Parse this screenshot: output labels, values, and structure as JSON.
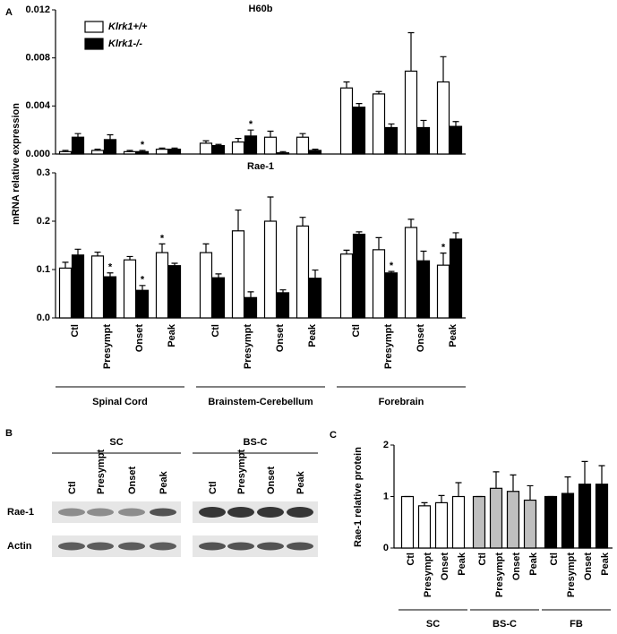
{
  "chart_data": [
    {
      "type": "bar",
      "panel_label": "A",
      "title": "H60b",
      "ylabel": "mRNA relative expression",
      "ylim": [
        0,
        0.012
      ],
      "yticks": [
        {
          "value": 0,
          "label": "0.000"
        },
        0.004,
        0.008,
        0.012
      ],
      "series": [
        {
          "name": "Klrk1+/+",
          "color": "#ffffff",
          "values": [
            0.0002,
            0.0003,
            0.0002,
            0.0004,
            0.0009,
            0.001,
            0.0014,
            0.0014,
            0.0055,
            0.005,
            0.0069,
            0.006
          ],
          "errors": [
            0.0001,
            0.0001,
            0.0001,
            0.0001,
            0.0002,
            0.0003,
            0.0005,
            0.0003,
            0.0005,
            0.0002,
            0.0032,
            0.0021
          ]
        },
        {
          "name": "Klrk1-/-",
          "color": "#000000",
          "values": [
            0.0014,
            0.0012,
            0.0002,
            0.0004,
            0.0007,
            0.0015,
            0.0001,
            0.0003,
            0.0039,
            0.0022,
            0.0022,
            0.0023
          ],
          "errors": [
            0.0003,
            0.0004,
            0.0001,
            0.0001,
            0.0001,
            0.0005,
            0.0001,
            0.0001,
            0.0003,
            0.0003,
            0.0006,
            0.0004
          ],
          "significance": [
            null,
            null,
            "*",
            null,
            null,
            "*",
            null,
            null,
            null,
            null,
            null,
            null
          ]
        }
      ]
    },
    {
      "type": "bar",
      "title": "Rae-1",
      "ylim": [
        0,
        0.3
      ],
      "yticks": [
        {
          "value": 0,
          "label": "0.0"
        },
        0.1,
        0.2,
        0.3
      ],
      "categories": [
        "Ctl",
        "Presympt",
        "Onset",
        "Peak",
        "Ctl",
        "Presympt",
        "Onset",
        "Peak",
        "Ctl",
        "Presympt",
        "Onset",
        "Peak"
      ],
      "group_labels": [
        "Spinal Cord",
        "Brainstem-Cerebellum",
        "Forebrain"
      ],
      "series": [
        {
          "color": "#ffffff",
          "values": [
            0.103,
            0.128,
            0.12,
            0.135,
            0.135,
            0.18,
            0.2,
            0.19,
            0.132,
            0.141,
            0.187,
            0.109
          ],
          "errors": [
            0.012,
            0.008,
            0.007,
            0.018,
            0.018,
            0.043,
            0.05,
            0.018,
            0.008,
            0.025,
            0.017,
            0.025
          ],
          "significance": [
            null,
            null,
            null,
            "*",
            null,
            null,
            null,
            null,
            null,
            null,
            null,
            "*"
          ]
        },
        {
          "color": "#000000",
          "values": [
            0.13,
            0.085,
            0.057,
            0.108,
            0.083,
            0.042,
            0.052,
            0.082,
            0.173,
            0.093,
            0.118,
            0.163
          ],
          "errors": [
            0.012,
            0.008,
            0.01,
            0.005,
            0.008,
            0.012,
            0.006,
            0.017,
            0.005,
            0.003,
            0.02,
            0.013
          ],
          "significance": [
            null,
            "*",
            "*",
            null,
            null,
            null,
            null,
            null,
            null,
            "*",
            null,
            null
          ]
        }
      ]
    },
    {
      "type": "bar",
      "panel_label": "C",
      "ylabel": "Rae-1 relative protein",
      "ylim": [
        0,
        2
      ],
      "yticks": [
        0,
        1,
        2
      ],
      "categories": [
        "Ctl",
        "Presympt",
        "Onset",
        "Peak",
        "Ctl",
        "Presympt",
        "Onset",
        "Peak",
        "Ctl",
        "Presympt",
        "Onset",
        "Peak"
      ],
      "group_labels": [
        "SC",
        "BS-C",
        "FB"
      ],
      "group_colors": [
        "#ffffff",
        "#bfbfbf",
        "#000000"
      ],
      "series": [
        {
          "values": [
            1,
            0.82,
            0.88,
            1,
            1,
            1.16,
            1.1,
            0.93,
            1,
            1.06,
            1.24,
            1.24
          ],
          "errors": [
            0,
            0.06,
            0.14,
            0.27,
            0,
            0.32,
            0.32,
            0.28,
            0,
            0.32,
            0.44,
            0.36
          ]
        }
      ]
    }
  ],
  "blot": {
    "panel_label": "B",
    "groups": [
      {
        "label": "SC",
        "lanes": [
          "Ctl",
          "Presympt",
          "Onset",
          "Peak"
        ]
      },
      {
        "label": "BS-C",
        "lanes": [
          "Ctl",
          "Presympt",
          "Onset",
          "Peak"
        ]
      }
    ],
    "rows": [
      "Rae-1",
      "Actin"
    ]
  }
}
